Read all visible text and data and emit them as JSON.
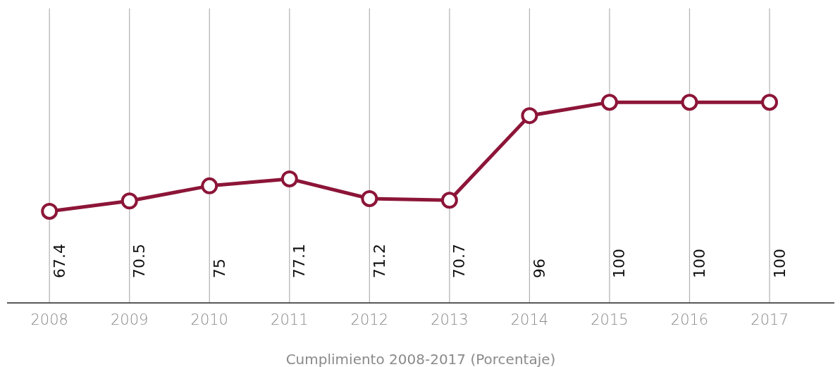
{
  "chart_data": {
    "type": "line",
    "xlabel": "Cumplimiento 2008-2017 (Porcentaje)",
    "categories": [
      "2008",
      "2009",
      "2010",
      "2011",
      "2012",
      "2013",
      "2014",
      "2015",
      "2016",
      "2017"
    ],
    "series": [
      {
        "color": "#8c1538",
        "values": [
          67.4,
          70.5,
          75,
          77.1,
          71.2,
          70.7,
          96,
          100,
          100,
          100
        ]
      }
    ],
    "data_labels": true,
    "grid": "x",
    "marker": "circle",
    "line_style": "solid",
    "tick_labels": "x"
  }
}
